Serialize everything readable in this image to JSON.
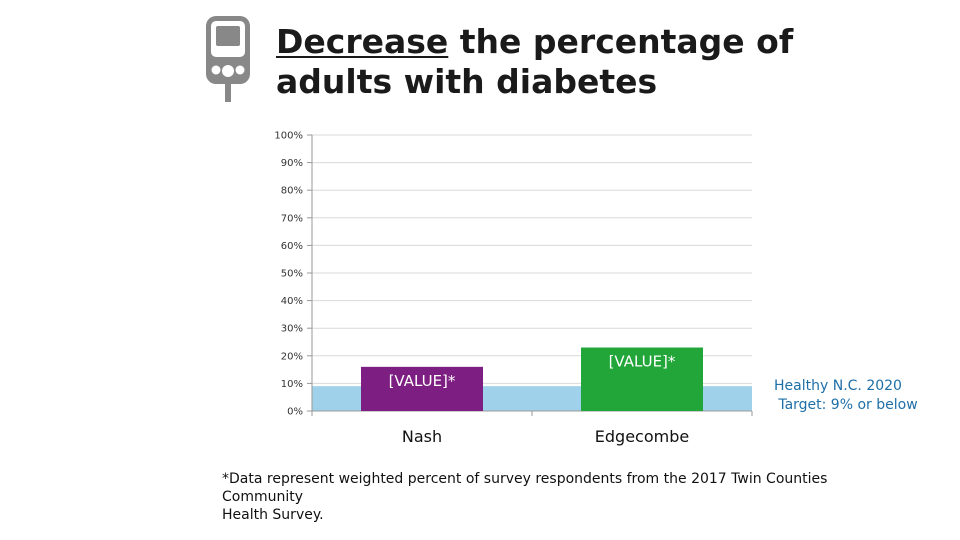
{
  "title": {
    "underlined": "Decrease",
    "rest_line1": " the percentage of",
    "rest_line2": "adults with diabetes"
  },
  "icon": "glucose-meter-icon",
  "chart_data": {
    "type": "bar",
    "categories": [
      "Nash",
      "Edgecombe"
    ],
    "values": [
      16,
      23
    ],
    "data_labels": [
      "[VALUE]*",
      "[VALUE]*"
    ],
    "bar_colors": [
      "#7d1f82",
      "#22a63a"
    ],
    "ylim": [
      0,
      100
    ],
    "y_ticks": [
      0,
      10,
      20,
      30,
      40,
      50,
      60,
      70,
      80,
      90,
      100
    ],
    "y_tick_labels": [
      "0%",
      "10%",
      "20%",
      "30%",
      "40%",
      "50%",
      "60%",
      "70%",
      "80%",
      "90%",
      "100%"
    ],
    "grid": true,
    "target_band": {
      "range": [
        0,
        9
      ],
      "color": "#9fd2ea",
      "label_line1": "Healthy N.C. 2020",
      "label_line2": "Target: 9% or below",
      "label_color": "#1e6fa8"
    }
  },
  "footnote": {
    "line1": "*Data represent weighted percent of survey respondents from the 2017 Twin Counties Community",
    "line2": "Health Survey."
  }
}
